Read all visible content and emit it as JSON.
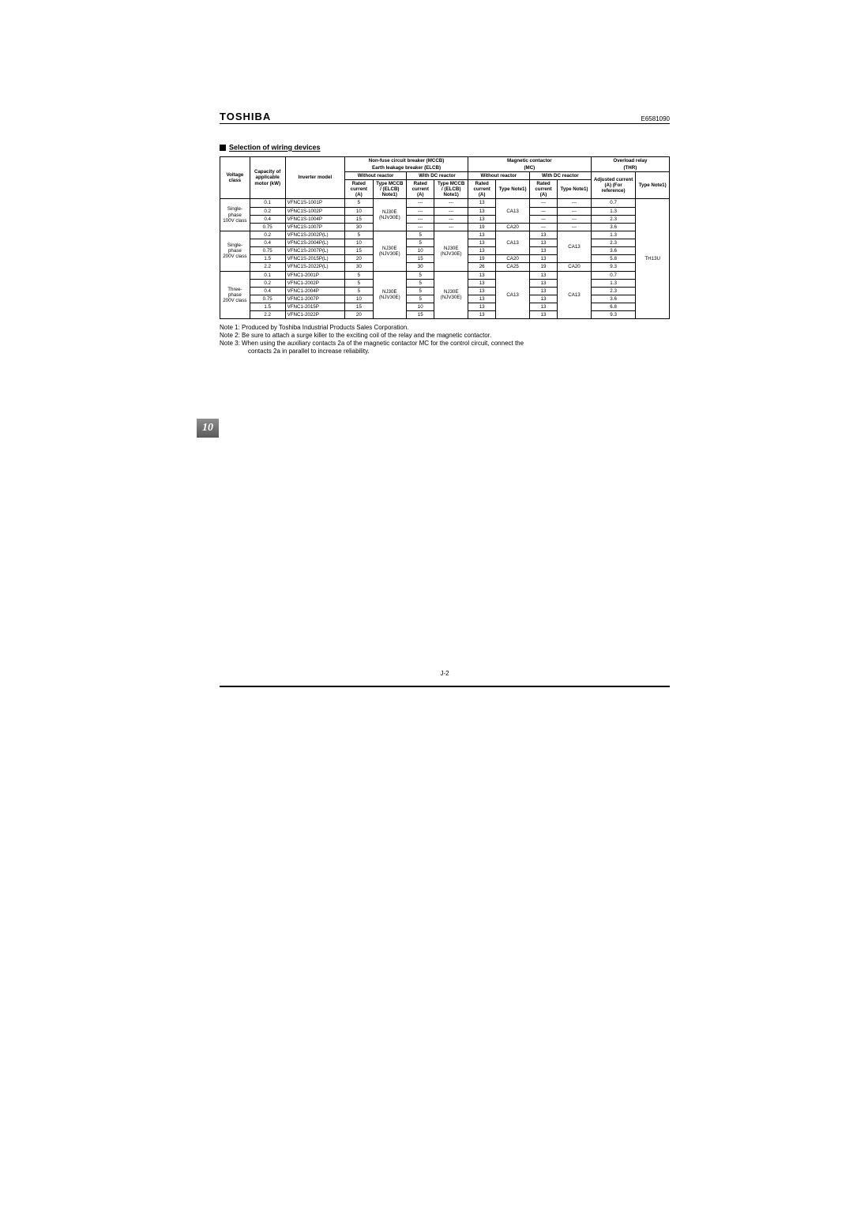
{
  "doc_id": "E6581090",
  "brand": "TOSHIBA",
  "section_title": "Selection of wiring devices",
  "page_label": "J-2",
  "tab": "10",
  "notes": {
    "n1": "Note 1: Produced by Toshiba Industrial Products Sales Corporation.",
    "n2": "Note 2: Be sure to attach a surge killer to the exciting coil of the relay and the magnetic contactor.",
    "n3a": "Note 3: When using the auxiliary contacts 2a of the magnetic contactor MC for the control circuit, connect the",
    "n3b": "contacts 2a in parallel to increase reliability."
  },
  "head": {
    "mccb_top": "Non-fuse circuit breaker (MCCB)",
    "elcb_top": "Earth leakage breaker (ELCB)",
    "mc_top": "Magnetic contactor",
    "mc_sub": "(MC)",
    "or_top": "Overload relay",
    "or_sub": "(THR)",
    "without": "Without reactor",
    "with": "With DC reactor",
    "vclass": "Voltage class",
    "capacity": "Capacity of applicable motor (kW)",
    "model": "Inverter model",
    "rated": "Rated current (A)",
    "typeMccb": "Type MCCB / (ELCB) Note1)",
    "typeNote": "Type Note1)",
    "adj": "Adjusted current (A) (For reference)"
  },
  "vc": {
    "s100": "Single-phase 100V class",
    "s200": "Single-phase 200V class",
    "t200": "Three-phase 200V class"
  },
  "rows": {
    "s100": [
      {
        "cap": "0.1",
        "model": "VFNC1S-1001P",
        "r1": "5",
        "r2": "---",
        "t2": "---",
        "mc_r1": "13",
        "mc_r2": "---",
        "mc_t2": "---",
        "adj": "0.7"
      },
      {
        "cap": "0.2",
        "model": "VFNC1S-1002P",
        "r1": "10",
        "r2": "---",
        "t2": "---",
        "mc_r1": "13",
        "mc_r2": "---",
        "mc_t2": "---",
        "adj": "1.3"
      },
      {
        "cap": "0.4",
        "model": "VFNC1S-1004P",
        "r1": "15",
        "r2": "---",
        "t2": "---",
        "mc_r1": "13",
        "mc_r2": "---",
        "mc_t2": "---",
        "adj": "2.3"
      },
      {
        "cap": "0.75",
        "model": "VFNC1S-1007P",
        "r1": "30",
        "r2": "---",
        "t2": "---",
        "mc_r1": "19",
        "mc_r2": "---",
        "mc_t2": "---",
        "adj": "3.6"
      }
    ],
    "s200": [
      {
        "cap": "0.2",
        "model": "VFNC1S-2002P(L)",
        "r1": "5",
        "r2": "5",
        "mc_r1": "13",
        "mc_r2": "13",
        "adj": "1.3"
      },
      {
        "cap": "0.4",
        "model": "VFNC1S-2004P(L)",
        "r1": "10",
        "r2": "5",
        "mc_r1": "13",
        "mc_r2": "13",
        "adj": "2.3"
      },
      {
        "cap": "0.75",
        "model": "VFNC1S-2007P(L)",
        "r1": "15",
        "r2": "10",
        "mc_r1": "13",
        "mc_r2": "13",
        "adj": "3.6"
      },
      {
        "cap": "1.5",
        "model": "VFNC1S-2015P(L)",
        "r1": "20",
        "r2": "15",
        "mc_r1": "19",
        "mc_r2": "13",
        "adj": "5.8"
      },
      {
        "cap": "2.2",
        "model": "VFNC1S-2022P(L)",
        "r1": "30",
        "r2": "30",
        "mc_r1": "26",
        "mc_r2": "19",
        "adj": "9.3"
      }
    ],
    "t200": [
      {
        "cap": "0.1",
        "model": "VFNC1-2001P",
        "r1": "5",
        "r2": "5",
        "mc_r1": "13",
        "mc_r2": "13",
        "adj": "0.7"
      },
      {
        "cap": "0.2",
        "model": "VFNC1-2002P",
        "r1": "5",
        "r2": "5",
        "mc_r1": "13",
        "mc_r2": "13",
        "adj": "1.3"
      },
      {
        "cap": "0.4",
        "model": "VFNC1-2004P",
        "r1": "5",
        "r2": "5",
        "mc_r1": "13",
        "mc_r2": "13",
        "adj": "2.3"
      },
      {
        "cap": "0.75",
        "model": "VFNC1-2007P",
        "r1": "10",
        "r2": "5",
        "mc_r1": "13",
        "mc_r2": "13",
        "adj": "3.6"
      },
      {
        "cap": "1.5",
        "model": "VFNC1-2015P",
        "r1": "15",
        "r2": "10",
        "mc_r1": "13",
        "mc_r2": "13",
        "adj": "6.8"
      },
      {
        "cap": "2.2",
        "model": "VFNC1-2022P",
        "r1": "20",
        "r2": "15",
        "mc_r1": "13",
        "mc_r2": "13",
        "adj": "9.3"
      }
    ]
  },
  "span": {
    "s100_t1": "NJ30E (NJV30E)",
    "s100_mc_t1": "CA13",
    "s100_mc_t1b": "CA20",
    "s200_t1": "NJ30E (NJV30E)",
    "s200_t2": "NJ30E (NJV30E)",
    "s200_mc_t1a": "CA13",
    "s200_mc_t1b": "CA20",
    "s200_mc_t1c": "CA25",
    "s200_mc_t2a": "CA13",
    "s200_mc_t2b": "CA20",
    "t200_t1": "NJ30E (NJV30E)",
    "t200_t2": "NJ30E (NJV30E)",
    "t200_mc_t1": "CA13",
    "t200_mc_t2": "CA13",
    "or_type": "TH13U"
  }
}
